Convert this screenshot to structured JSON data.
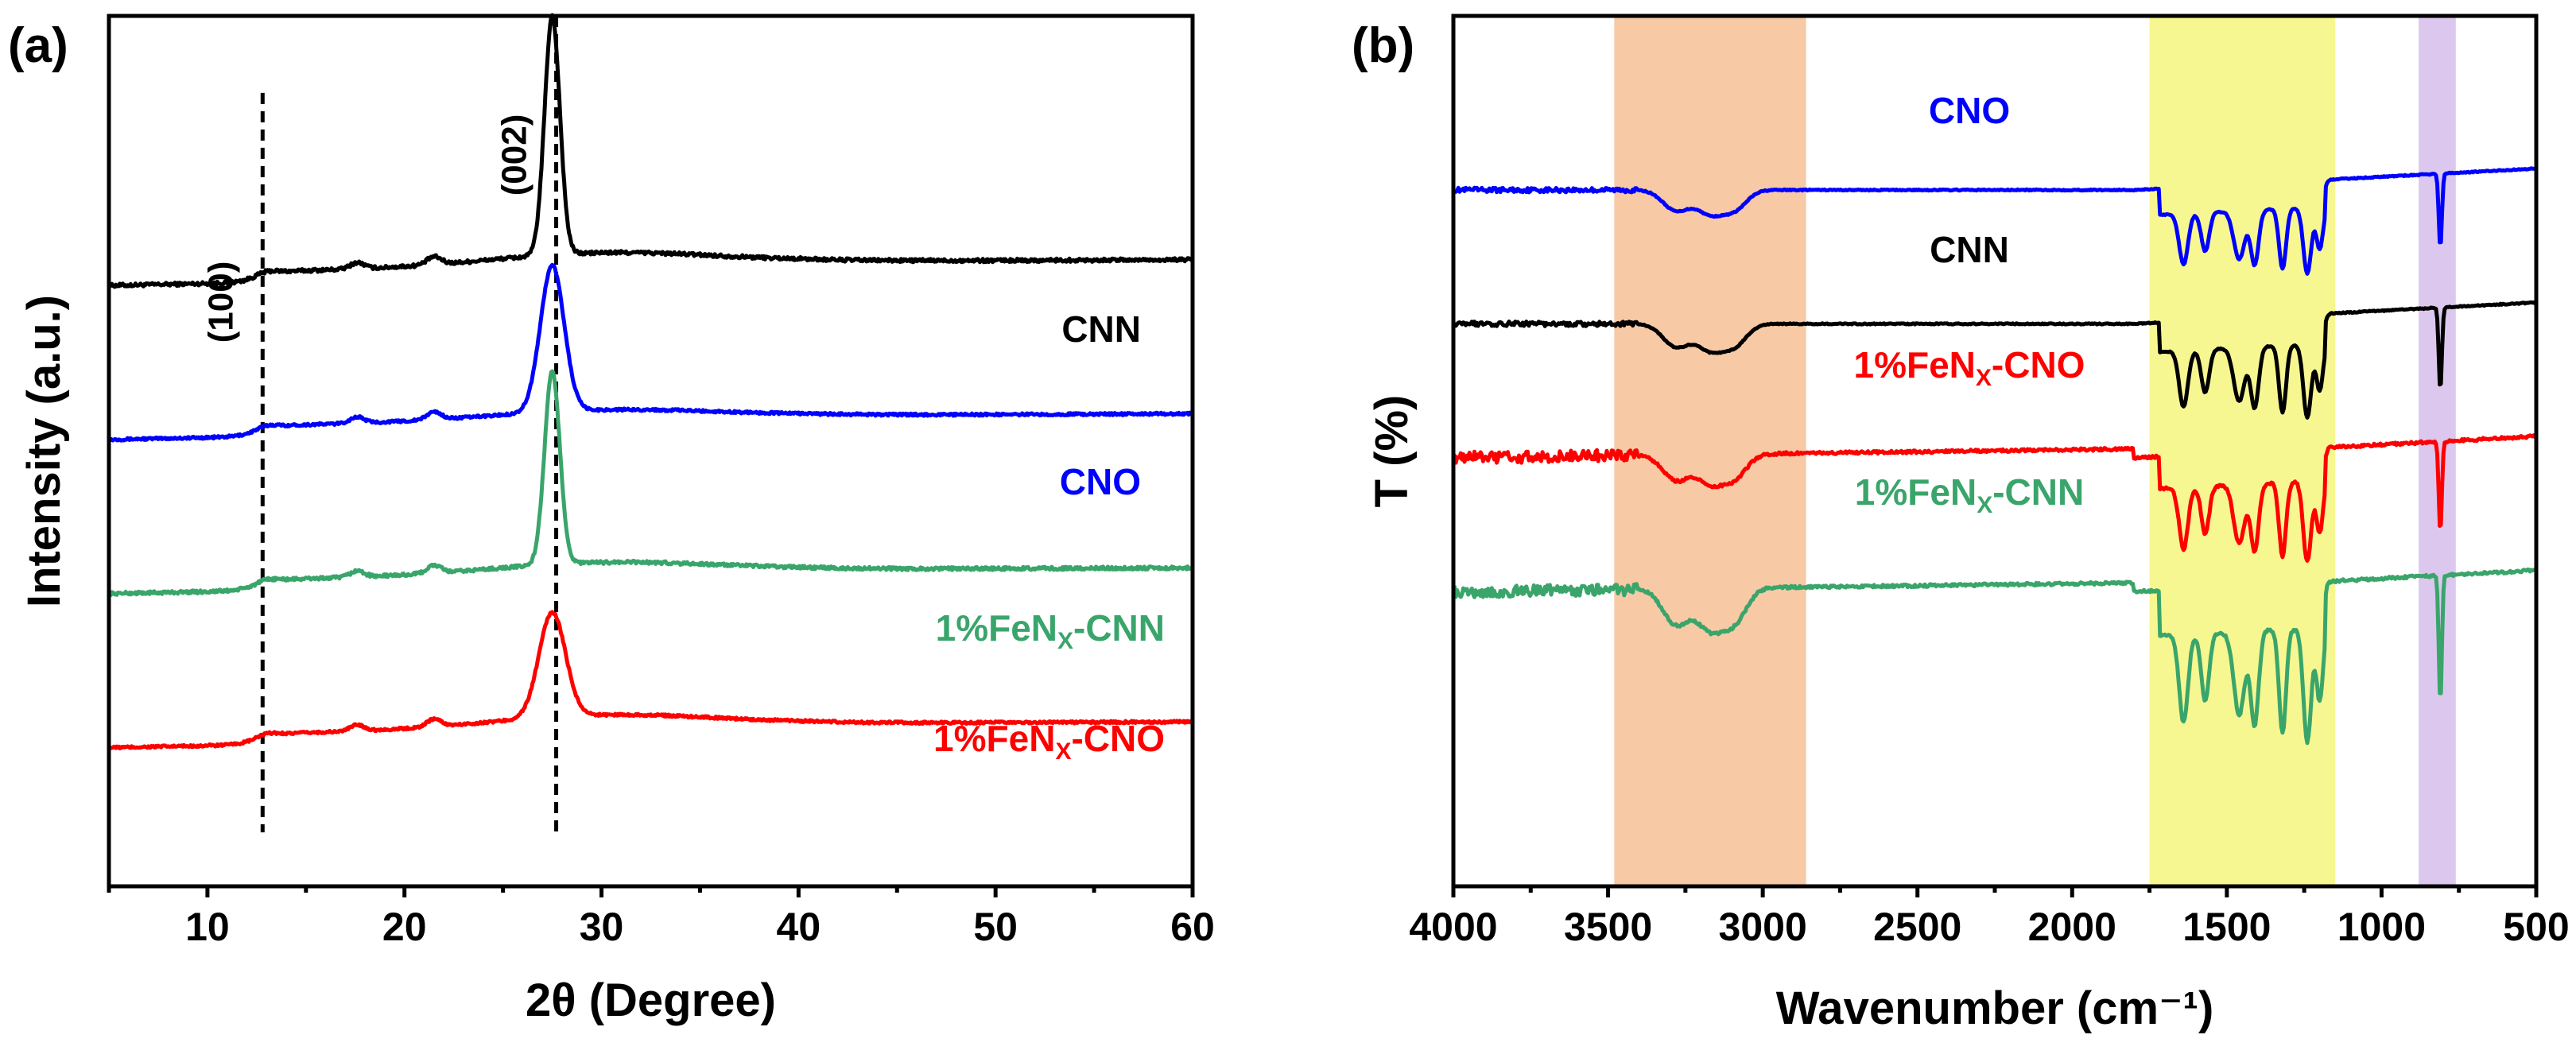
{
  "chart_data": [
    {
      "panel": "(a)",
      "type": "line",
      "xlabel": "2θ (Degree)",
      "ylabel": "Intensity (a.u.)",
      "xlim": [
        5,
        60
      ],
      "xticks": [
        10,
        20,
        30,
        40,
        50,
        60
      ],
      "grid": false,
      "annotations": [
        {
          "text": "(100)",
          "x": 12.8
        },
        {
          "text": "(002)",
          "x": 27.7
        }
      ],
      "series": [
        {
          "name": "CNN",
          "label_main": "CNN",
          "label_sub": "",
          "label_tail": "",
          "color": "#000000",
          "offset": 3.0,
          "peak_height": 1.55,
          "peak_width": 0.55,
          "hump": 0.08,
          "noise": 0.022
        },
        {
          "name": "CNO",
          "label_main": "CNO",
          "label_sub": "",
          "label_tail": "",
          "color": "#0000ff",
          "offset": 2.0,
          "peak_height": 0.95,
          "peak_width": 0.85,
          "hump": 0.06,
          "noise": 0.015
        },
        {
          "name": "1%FeNx-CNN",
          "label_main": "1%FeN",
          "label_sub": "X",
          "label_tail": "-CNN",
          "color": "#3aa56b",
          "offset": 1.0,
          "peak_height": 1.25,
          "peak_width": 0.55,
          "hump": 0.07,
          "noise": 0.02
        },
        {
          "name": "1%FeNx-CNO",
          "label_main": "1%FeN",
          "label_sub": "X",
          "label_tail": "-CNO",
          "color": "#ff0000",
          "offset": 0.0,
          "peak_height": 0.68,
          "peak_width": 0.95,
          "hump": 0.08,
          "noise": 0.015
        }
      ]
    },
    {
      "panel": "(b)",
      "type": "line",
      "xlabel": "Wavenumber (cm⁻¹)",
      "ylabel": "T (%)",
      "xlim": [
        4000,
        500
      ],
      "xticks": [
        4000,
        3500,
        3000,
        2500,
        2000,
        1500,
        1000,
        500
      ],
      "grid": false,
      "highlight_bands": [
        {
          "from": 3480,
          "to": 2860,
          "color": "#f8c9a5"
        },
        {
          "from": 1750,
          "to": 1150,
          "color": "#f7f791"
        },
        {
          "from": 880,
          "to": 760,
          "color": "#dcc8ee"
        }
      ],
      "series": [
        {
          "name": "CNO",
          "label_main": "CNO",
          "label_sub": "",
          "label_tail": "",
          "color": "#0000ff",
          "offset": 3.0,
          "dip_scale": 0.9
        },
        {
          "name": "CNN",
          "label_main": "CNN",
          "label_sub": "",
          "label_tail": "",
          "color": "#000000",
          "offset": 2.0,
          "dip_scale": 1.0
        },
        {
          "name": "1%FeNx-CNO",
          "label_main": "1%FeN",
          "label_sub": "X",
          "label_tail": "-CNO",
          "color": "#ff0000",
          "offset": 1.0,
          "dip_scale": 1.1
        },
        {
          "name": "1%FeNx-CNN",
          "label_main": "1%FeN",
          "label_sub": "X",
          "label_tail": "-CNN",
          "color": "#3aa56b",
          "offset": 0.0,
          "dip_scale": 1.55
        }
      ]
    }
  ]
}
